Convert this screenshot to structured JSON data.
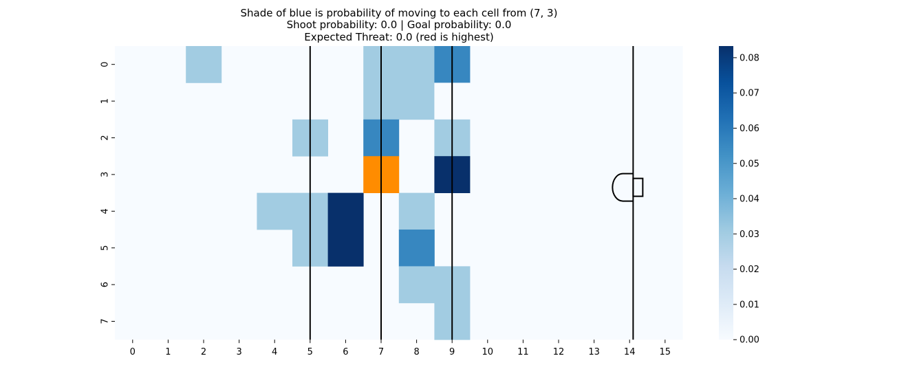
{
  "chart_data": {
    "type": "heatmap",
    "title_lines": [
      "Shade of blue is probability of moving to each cell from (7, 3)",
      "Shoot probability: 0.0 | Goal probability: 0.0",
      "Expected Threat: 0.0 (red is highest)"
    ],
    "x_ticks": [
      "0",
      "1",
      "2",
      "3",
      "4",
      "5",
      "6",
      "7",
      "8",
      "9",
      "10",
      "11",
      "12",
      "13",
      "14",
      "15"
    ],
    "y_ticks": [
      "0",
      "1",
      "2",
      "3",
      "4",
      "5",
      "6",
      "7"
    ],
    "grid": false,
    "current_cell": {
      "x": 7,
      "y": 3,
      "color": "#ff8c00"
    },
    "colorbar": {
      "vmin": 0.0,
      "vmax": 0.0833,
      "ticks": [
        "0.00",
        "0.01",
        "0.02",
        "0.03",
        "0.04",
        "0.05",
        "0.06",
        "0.07",
        "0.08"
      ],
      "colormap": "Blues",
      "placement": "right"
    },
    "cells": [
      {
        "x": 2,
        "y": 0,
        "value": 0.0303
      },
      {
        "x": 7,
        "y": 0,
        "value": 0.0303
      },
      {
        "x": 8,
        "y": 0,
        "value": 0.0303
      },
      {
        "x": 9,
        "y": 0,
        "value": 0.0556
      },
      {
        "x": 7,
        "y": 1,
        "value": 0.0303
      },
      {
        "x": 8,
        "y": 1,
        "value": 0.0303
      },
      {
        "x": 9,
        "y": 1,
        "value": 0.0
      },
      {
        "x": 5,
        "y": 2,
        "value": 0.0303
      },
      {
        "x": 7,
        "y": 2,
        "value": 0.0556
      },
      {
        "x": 9,
        "y": 2,
        "value": 0.0303
      },
      {
        "x": 9,
        "y": 3,
        "value": 0.0833
      },
      {
        "x": 4,
        "y": 4,
        "value": 0.0303
      },
      {
        "x": 5,
        "y": 4,
        "value": 0.0303
      },
      {
        "x": 6,
        "y": 4,
        "value": 0.0833
      },
      {
        "x": 8,
        "y": 4,
        "value": 0.0303
      },
      {
        "x": 5,
        "y": 5,
        "value": 0.0303
      },
      {
        "x": 6,
        "y": 5,
        "value": 0.0833
      },
      {
        "x": 8,
        "y": 5,
        "value": 0.0556
      },
      {
        "x": 8,
        "y": 6,
        "value": 0.0303
      },
      {
        "x": 9,
        "y": 6,
        "value": 0.0303
      },
      {
        "x": 9,
        "y": 7,
        "value": 0.0303
      }
    ],
    "pitch_lines_x": [
      5.5,
      7.5,
      9.5,
      14.6
    ]
  }
}
